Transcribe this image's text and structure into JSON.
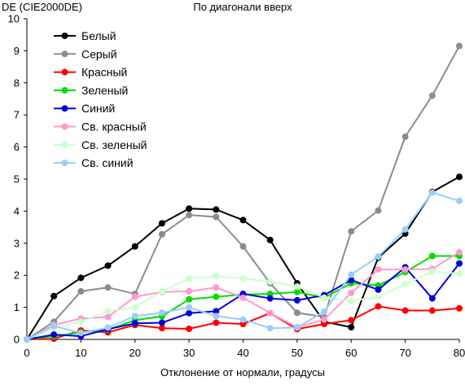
{
  "chart_data": {
    "type": "line",
    "title": "По диагонали вверх",
    "ylabel": "DE (CIE2000DE)",
    "xlabel": "Отклонение от нормали, градусы",
    "xlim": [
      0,
      80
    ],
    "ylim": [
      0,
      10
    ],
    "x_ticks": [
      0,
      10,
      20,
      30,
      40,
      50,
      60,
      70,
      80
    ],
    "y_ticks": [
      0,
      1,
      2,
      3,
      4,
      5,
      6,
      7,
      8,
      9,
      10
    ],
    "grid": false,
    "legend_position": "top-left",
    "x": [
      0,
      5,
      10,
      15,
      20,
      25,
      30,
      35,
      40,
      45,
      50,
      55,
      60,
      65,
      70,
      75,
      80
    ],
    "series": [
      {
        "name": "Белый",
        "color": "#000000",
        "values": [
          0,
          1.35,
          1.92,
          2.3,
          2.9,
          3.62,
          4.08,
          4.05,
          3.72,
          3.1,
          1.75,
          0.55,
          0.38,
          2.55,
          3.3,
          4.6,
          5.07
        ]
      },
      {
        "name": "Серый",
        "color": "#8c8c8c",
        "values": [
          0,
          0.55,
          1.5,
          1.62,
          1.42,
          3.28,
          3.88,
          3.82,
          2.9,
          1.75,
          0.83,
          0.7,
          3.37,
          4.02,
          6.32,
          7.6,
          9.15
        ]
      },
      {
        "name": "Красный",
        "color": "#ff0000",
        "values": [
          0,
          0.02,
          0.28,
          0.22,
          0.45,
          0.35,
          0.33,
          0.52,
          0.48,
          0.82,
          0.32,
          0.48,
          0.6,
          1.03,
          0.9,
          0.9,
          0.97
        ]
      },
      {
        "name": "Зеленый",
        "color": "#00dd00",
        "values": [
          0,
          0.1,
          0.22,
          0.3,
          0.6,
          0.72,
          1.25,
          1.33,
          1.4,
          1.42,
          1.48,
          1.3,
          1.75,
          1.68,
          2.1,
          2.6,
          2.6
        ]
      },
      {
        "name": "Синий",
        "color": "#0000dd",
        "values": [
          0,
          0.15,
          0.1,
          0.32,
          0.5,
          0.52,
          0.82,
          0.88,
          1.42,
          1.28,
          1.22,
          1.38,
          1.85,
          1.55,
          2.25,
          1.28,
          2.37
        ]
      },
      {
        "name": "Св. красный",
        "color": "#ff99cc",
        "values": [
          0,
          0.45,
          0.65,
          0.7,
          1.33,
          1.48,
          1.5,
          1.62,
          1.3,
          0.82,
          0.38,
          0.62,
          1.45,
          2.18,
          2.18,
          2.2,
          2.72
        ]
      },
      {
        "name": "Св. зеленый",
        "color": "#ccffcc",
        "values": [
          0,
          0.35,
          0.55,
          0.88,
          1.0,
          1.5,
          1.9,
          1.97,
          1.9,
          1.8,
          1.65,
          1.3,
          1.2,
          1.32,
          1.73,
          2.12,
          2.05
        ]
      },
      {
        "name": "Св. синий",
        "color": "#99ccff",
        "values": [
          0,
          0.42,
          0.2,
          0.37,
          0.73,
          0.83,
          1.0,
          0.73,
          0.62,
          0.35,
          0.37,
          0.87,
          2.02,
          2.58,
          3.43,
          4.58,
          4.32
        ]
      }
    ]
  }
}
